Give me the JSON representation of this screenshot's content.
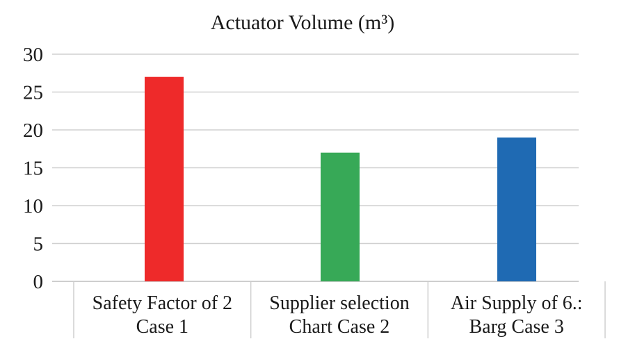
{
  "chart_data": {
    "type": "bar",
    "title": "Actuator Volume (m³)",
    "categories": [
      [
        "Safety Factor of 2",
        "Case 1"
      ],
      [
        "Supplier selection",
        "Chart Case 2"
      ],
      [
        "Air Supply of 6.:",
        "Barg Case 3"
      ]
    ],
    "values": [
      27,
      17,
      19
    ],
    "bar_colors": [
      "#ee2a2a",
      "#37a957",
      "#1f6ab3"
    ],
    "ylim": [
      0,
      30
    ],
    "yticks": [
      "0",
      "5",
      "10",
      "15",
      "20",
      "25",
      "30"
    ],
    "grid": true,
    "legend": "none"
  }
}
